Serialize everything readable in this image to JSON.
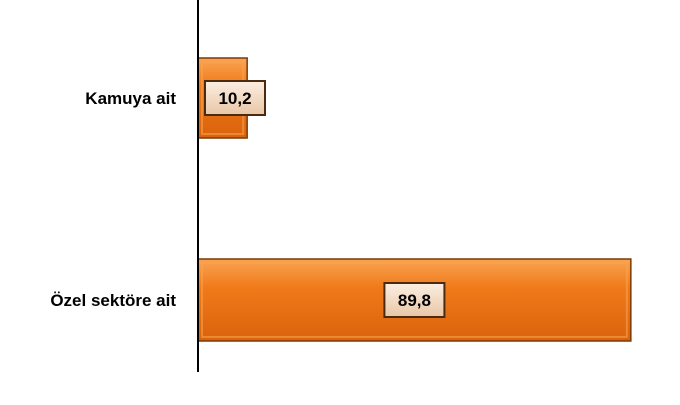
{
  "chart_data": {
    "type": "bar",
    "orientation": "horizontal",
    "categories": [
      "Kamuya ait",
      "Özel sektöre ait"
    ],
    "values": [
      10.2,
      89.8
    ],
    "value_labels": [
      "10,2",
      "89,8"
    ],
    "title": "",
    "xlabel": "",
    "ylabel": "",
    "xlim": [
      0,
      100
    ],
    "grid": false,
    "legend": "none"
  },
  "colors": {
    "bar_fill": "#f07a1a",
    "bar_highlight": "#f9a452",
    "bar_border": "#7a3a08",
    "label_box_fill": "#f3ddc7",
    "label_box_border": "#4a2a10",
    "axis": "#000000"
  }
}
